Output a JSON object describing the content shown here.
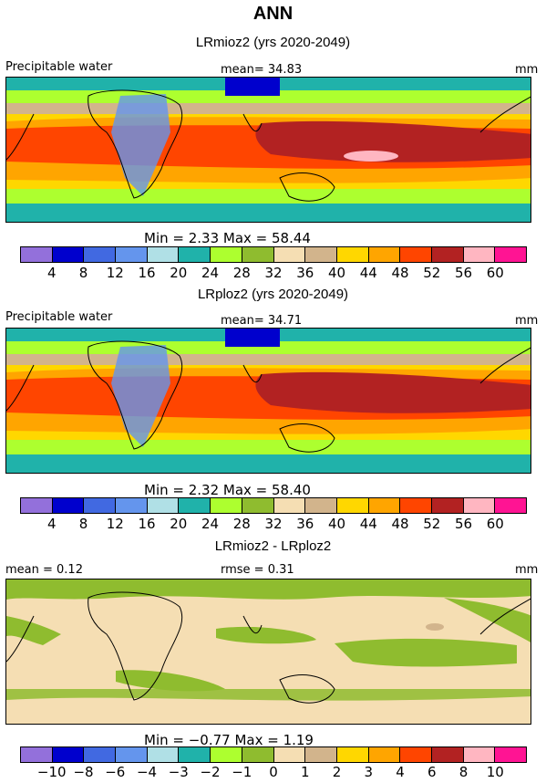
{
  "title": "ANN",
  "panels": [
    {
      "subtitle": "LRmioz2 (yrs 2020-2049)",
      "left_label": "Precipitable water",
      "center_label": "mean=  34.83",
      "right_label": "mm",
      "minmax": "Min =    2.33  Max =    58.44",
      "ticks": [
        "4",
        "8",
        "12",
        "16",
        "20",
        "24",
        "28",
        "32",
        "36",
        "40",
        "44",
        "48",
        "52",
        "56",
        "60"
      ],
      "map_kind": "absolute"
    },
    {
      "subtitle": "LRploz2 (yrs 2020-2049)",
      "left_label": "Precipitable water",
      "center_label": "mean=  34.71",
      "right_label": "mm",
      "minmax": "Min =    2.32  Max =    58.40",
      "ticks": [
        "4",
        "8",
        "12",
        "16",
        "20",
        "24",
        "28",
        "32",
        "36",
        "40",
        "44",
        "48",
        "52",
        "56",
        "60"
      ],
      "map_kind": "absolute"
    },
    {
      "subtitle": "LRmioz2 - LRploz2",
      "left_label": "mean =     0.12",
      "center_label": "rmse =     0.31",
      "right_label": "mm",
      "minmax": "Min =   −0.77  Max =     1.19",
      "ticks": [
        "−10",
        "−8",
        "−6",
        "−4",
        "−3",
        "−2",
        "−1",
        "0",
        "1",
        "2",
        "3",
        "4",
        "6",
        "8",
        "10"
      ],
      "map_kind": "difference"
    }
  ],
  "colorbar_colors": [
    "#9370db",
    "#0000cd",
    "#4169e1",
    "#6495ed",
    "#b0e0e6",
    "#20b2aa",
    "#adff2f",
    "#8fbc2f",
    "#f5deb3",
    "#d2b48c",
    "#ffd700",
    "#ffa500",
    "#ff4500",
    "#b22222",
    "#ffb6c1",
    "#ff1493"
  ],
  "map_colors": {
    "background": "#f5deb3",
    "land_outline": "#000000"
  }
}
